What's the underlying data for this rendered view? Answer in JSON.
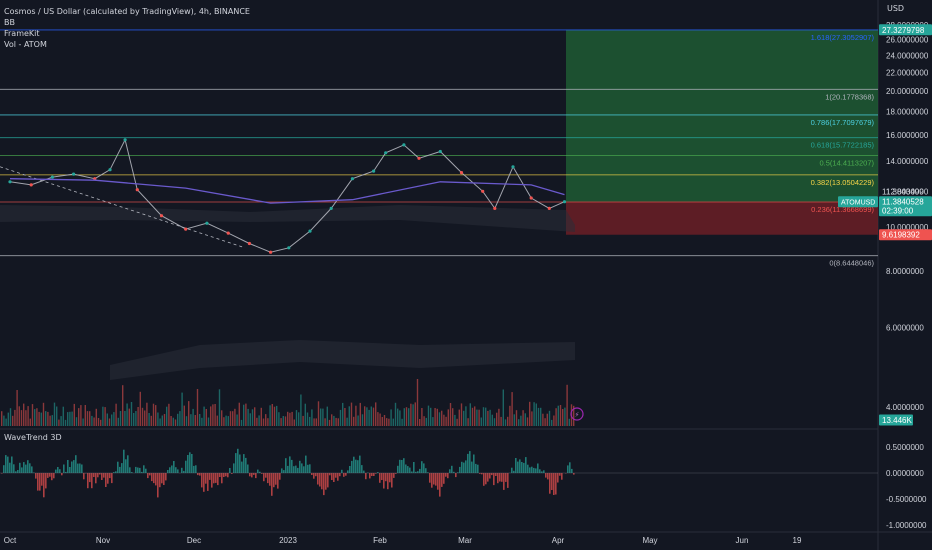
{
  "legend": {
    "title": "Cosmos / US Dollar (calculated by TradingView), 4h, BINANCE",
    "indicator_1": "BB",
    "indicator_2": "FrameKit",
    "indicator_3": "Vol - ATOM"
  },
  "axis": {
    "currency": "USD"
  },
  "colors": {
    "background": "#131722",
    "up": "#26a69a",
    "down": "#ef5350",
    "profit_zone": "#1f5a32",
    "loss_zone": "#6b1f26",
    "ma_line": "#6a5acd",
    "grid_line": "#b2b5be"
  },
  "chart_data": [
    {
      "type": "line",
      "title": "Cosmos / US Dollar (calculated by TradingView), 4h, BINANCE",
      "x_ticks": [
        "Oct",
        "Nov",
        "Dec",
        "2023",
        "Feb",
        "Mar",
        "Apr",
        "May",
        "Jun",
        "19"
      ],
      "y_ticks": [
        "28.0000000",
        "26.0000000",
        "24.0000000",
        "22.0000000",
        "20.0000000",
        "18.0000000",
        "16.0000000",
        "14.0000000",
        "12.0000000",
        "10.0000000",
        "8.0000000",
        "6.0000000",
        "4.0000000"
      ],
      "ylim": [
        3.5,
        28.5
      ],
      "y_scale": "log",
      "series": [
        {
          "name": "ATOMUSD",
          "x": [
            "Oct 1",
            "Oct 8",
            "Oct 15",
            "Oct 22",
            "Oct 29",
            "Nov 3",
            "Nov 8",
            "Nov 12",
            "Nov 20",
            "Nov 28",
            "Dec 5",
            "Dec 12",
            "Dec 19",
            "Dec 26",
            "Jan 1",
            "Jan 8",
            "Jan 15",
            "Jan 22",
            "Jan 29",
            "Feb 2",
            "Feb 8",
            "Feb 13",
            "Feb 20",
            "Feb 27",
            "Mar 6",
            "Mar 10",
            "Mar 16",
            "Mar 22",
            "Mar 28",
            "Apr 2"
          ],
          "values": [
            12.6,
            12.4,
            12.9,
            13.1,
            12.8,
            13.4,
            15.6,
            12.1,
            10.6,
            9.9,
            10.2,
            9.7,
            9.2,
            8.8,
            9.0,
            9.8,
            11.0,
            12.8,
            13.3,
            14.6,
            15.2,
            14.2,
            14.7,
            13.2,
            12.0,
            11.0,
            13.6,
            11.6,
            11.0,
            11.38
          ]
        },
        {
          "name": "MA",
          "x": [
            "Oct 1",
            "Oct 29",
            "Nov 28",
            "Dec 26",
            "Jan 22",
            "Feb 20",
            "Mar 22",
            "Apr 2"
          ],
          "values": [
            12.8,
            12.7,
            12.2,
            11.3,
            11.5,
            12.6,
            12.4,
            11.8
          ]
        }
      ],
      "fib_levels": [
        {
          "label": "1.618(27.3052907)",
          "value": 27.3052907,
          "color": "#2962ff"
        },
        {
          "label": "1(20.1778368)",
          "value": 20.1778368,
          "color": "#b2b5be"
        },
        {
          "label": "0.786(17.7097679)",
          "value": 17.7097679,
          "color": "#4dd0e1"
        },
        {
          "label": "0.618(15.7722185)",
          "value": 15.7722185,
          "color": "#26a69a"
        },
        {
          "label": "0.5(14.4113207)",
          "value": 14.4113207,
          "color": "#4caf50"
        },
        {
          "label": "0.382(13.0504229)",
          "value": 13.0504229,
          "color": "#f9d648"
        },
        {
          "label": "0.236(11.3668699)",
          "value": 11.3668699,
          "color": "#ef5350"
        },
        {
          "label": "0(8.6448046)",
          "value": 8.6448046,
          "color": "#b2b5be"
        }
      ],
      "price_tags": [
        {
          "label": "27.3279798",
          "value": 27.3279798,
          "color": "#26a69a"
        },
        {
          "label": "11.3843499",
          "value": 11.3843499,
          "color": "#131722"
        },
        {
          "label": "ATOMUSD",
          "value": 11.384,
          "color": "#26a69a"
        },
        {
          "label": "11.3840528",
          "value": 11.3840528,
          "color": "#26a69a"
        },
        {
          "label": "02:39:00",
          "value": 11.0,
          "color": "#26a69a"
        },
        {
          "label": "9.6198392",
          "value": 9.6198392,
          "color": "#ef5350"
        },
        {
          "label": "13.446K",
          "value": 3.6,
          "color": "#26a69a"
        }
      ],
      "position": {
        "entry": 11.38,
        "target": 27.3279798,
        "stop": 9.6198392
      }
    },
    {
      "type": "line",
      "title": "WaveTrend 3D",
      "y_ticks": [
        "0.5000000",
        "0.0000000",
        "-0.5000000",
        "-1.0000000"
      ],
      "ylim": [
        -1.15,
        0.75
      ]
    }
  ]
}
